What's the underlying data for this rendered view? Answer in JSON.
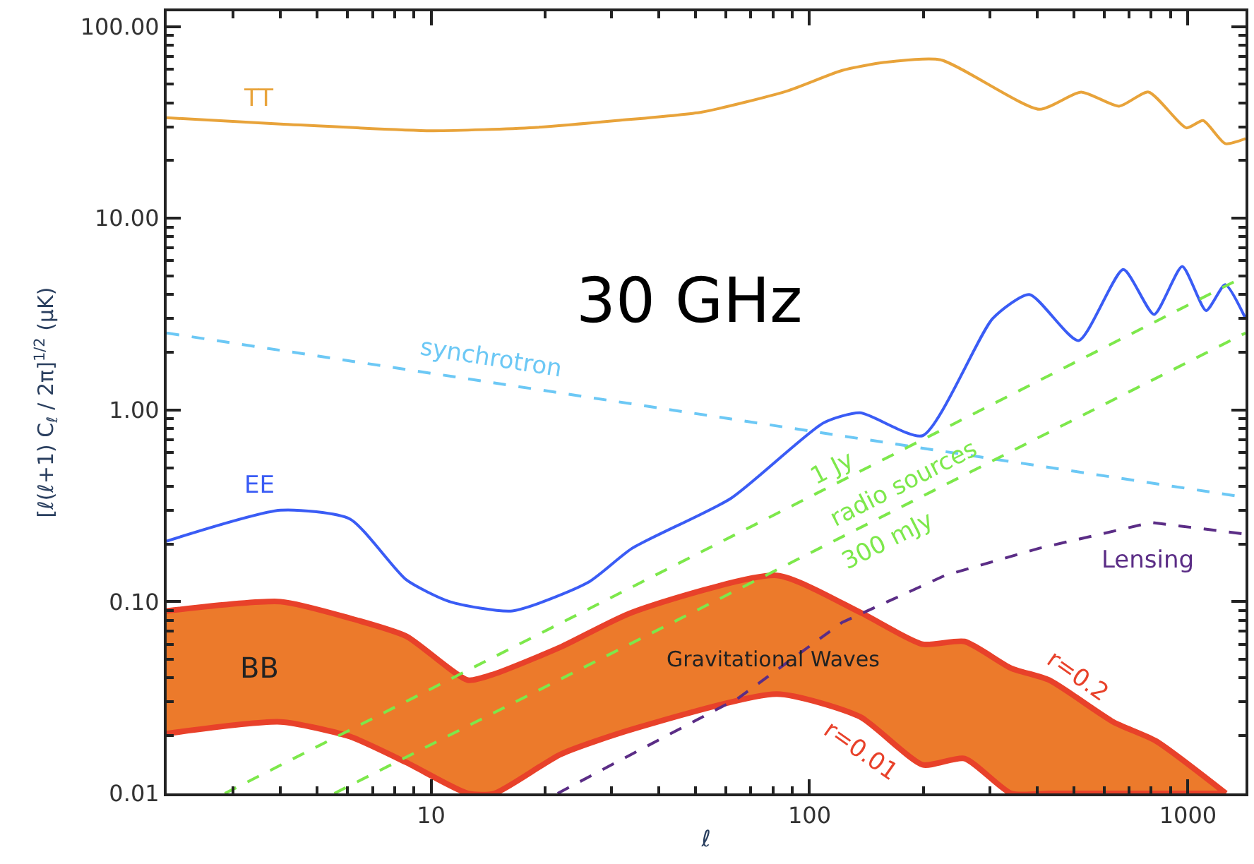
{
  "chart_data": {
    "type": "line",
    "xlabel": "ℓ",
    "ylabel": "[ℓ(ℓ+1) C$_{ℓ}$ / 2π]$^{1/2}$ (μK)",
    "log": "xy",
    "legend": false,
    "xlim": [
      2,
      1420
    ],
    "ylim": [
      0.01,
      120
    ],
    "xticks": [
      10,
      100,
      1000
    ],
    "yticks": [
      {
        "value": 0.01,
        "label": "0.01"
      },
      {
        "value": 0.1,
        "label": "0.10"
      },
      {
        "value": 1,
        "label": "1.00"
      },
      {
        "value": 10,
        "label": "10.00"
      },
      {
        "value": 100,
        "label": "100.00"
      }
    ],
    "annotations": [
      "30 GHz",
      "BB",
      "Gravitational Waves",
      "radio sources"
    ],
    "series": [
      {
        "name": "r=0.01",
        "color": "#e8412a",
        "x": [
          2,
          4,
          6.1,
          8.6,
          12.5,
          14.7,
          22,
          34,
          82,
          136,
          199,
          257,
          341,
          430,
          635,
          822,
          1260
        ],
        "values": [
          0.0205,
          0.0236,
          0.0198,
          0.0145,
          0.01,
          0.01,
          0.016,
          0.0216,
          0.033,
          0.0251,
          0.0141,
          0.0152,
          0.01,
          0.01,
          0.01,
          0.01,
          0.01
        ]
      },
      {
        "name": "r=0.2",
        "type": "area",
        "color": "#ec7a2b",
        "x": [
          2,
          4,
          6.1,
          8.6,
          12.5,
          14.7,
          22,
          34,
          82,
          136,
          199,
          257,
          341,
          430,
          635,
          822,
          1260
        ],
        "values": [
          0.0895,
          0.1,
          0.082,
          0.066,
          0.039,
          0.042,
          0.058,
          0.088,
          0.137,
          0.088,
          0.06,
          0.062,
          0.045,
          0.039,
          0.0236,
          0.0188,
          0.01
        ]
      },
      {
        "name": "TT",
        "color": "#e8a33a",
        "x": [
          2,
          4,
          10,
          18.7,
          31,
          52,
          87,
          122,
          158,
          222,
          405,
          522,
          658,
          787,
          991,
          1097,
          1255,
          1420
        ],
        "values": [
          33.4,
          31,
          28.6,
          29.7,
          32.3,
          35.8,
          46,
          59,
          65,
          67,
          37,
          45.5,
          38.4,
          45.5,
          29.6,
          32.3,
          24.5,
          26
        ]
      },
      {
        "name": "EE",
        "color": "#3a5cf5",
        "x": [
          2,
          4,
          6.1,
          8.6,
          11.2,
          16.4,
          26,
          34,
          62,
          109,
          136,
          199,
          305,
          381,
          514,
          675,
          814,
          966,
          1117,
          1255,
          1420
        ],
        "values": [
          0.207,
          0.3,
          0.27,
          0.13,
          0.1,
          0.0895,
          0.126,
          0.19,
          0.346,
          0.857,
          0.966,
          0.734,
          3.0,
          4.0,
          2.3,
          5.4,
          3.15,
          5.6,
          3.3,
          4.5,
          3.0
        ]
      },
      {
        "name": "synchrotron",
        "color": "#6cc8f5",
        "line_style": "dashed",
        "x": [
          2,
          1420
        ],
        "values": [
          2.52,
          0.35
        ]
      },
      {
        "name": "1 Jy",
        "color": "#7de84b",
        "line_style": "dashed",
        "x": [
          2.85,
          1420
        ],
        "values": [
          0.01,
          5.0
        ]
      },
      {
        "name": "300 mJy",
        "color": "#7de84b",
        "line_style": "dashed",
        "x": [
          5.55,
          1420
        ],
        "values": [
          0.01,
          2.52
        ]
      },
      {
        "name": "Lensing",
        "color": "#5b2d86",
        "line_style": "dashed",
        "x": [
          21.6,
          31,
          65,
          122,
          228,
          405,
          801,
          1420
        ],
        "values": [
          0.01,
          0.0146,
          0.0315,
          0.078,
          0.137,
          0.19,
          0.259,
          0.225
        ]
      }
    ]
  }
}
